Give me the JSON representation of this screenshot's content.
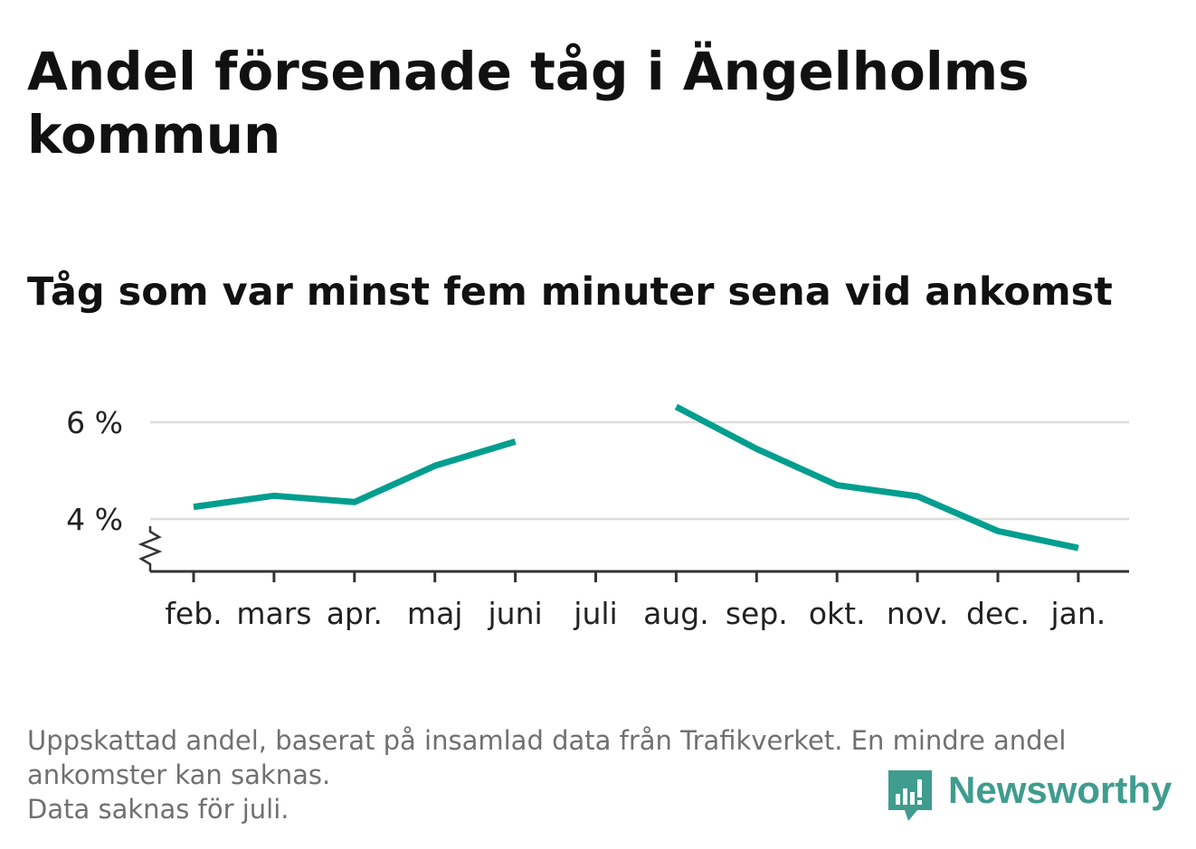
{
  "title": "Andel försenade tåg i Ängelholms kommun",
  "subtitle": "Tåg som var minst fem minuter sena vid ankomst",
  "chart_data": {
    "type": "line",
    "categories": [
      "feb.",
      "mars",
      "apr.",
      "maj",
      "juni",
      "juli",
      "aug.",
      "sep.",
      "okt.",
      "nov.",
      "dec.",
      "jan."
    ],
    "series": [
      {
        "values": [
          4.25,
          4.48,
          4.35,
          5.1,
          5.6,
          null,
          6.32,
          5.45,
          4.7,
          4.47,
          3.75,
          3.4
        ]
      }
    ],
    "y_ticks": [
      {
        "value": 4,
        "label": "4 %"
      },
      {
        "value": 6,
        "label": "6 %"
      }
    ],
    "ylim": [
      3,
      7
    ],
    "y_axis_break": true,
    "grid": "horizontal",
    "line_color": "#009e8f",
    "xlabel": "",
    "ylabel": ""
  },
  "footnote": {
    "lines": [
      "Uppskattad andel, baserat på insamlad data från Trafikverket. En mindre andel",
      "ankomster kan saknas.",
      "Data saknas för juli."
    ]
  },
  "brand": {
    "name": "Newsworthy",
    "icon": "bar-chart-speech-bubble-icon",
    "color": "#3f9c8e"
  }
}
